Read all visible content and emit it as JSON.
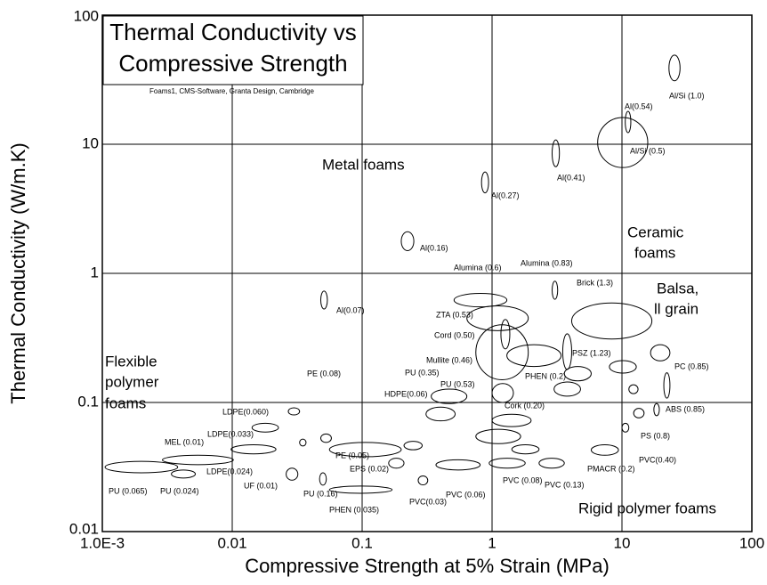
{
  "chart_data": {
    "type": "scatter",
    "log_x": true,
    "log_y": true,
    "grid": true,
    "title": [
      "Thermal Conductivity vs",
      "Compressive Strength"
    ],
    "subtitle": "Foams1, CMS-Software, Granta Design, Cambridge",
    "x_label": "Compressive Strength at 5% Strain (MPa)",
    "y_label": "Thermal Conductivity (W/m.K)",
    "xlim": [
      0.001,
      100
    ],
    "xticks": [
      {
        "value": 0.001,
        "label": "1.0E-3"
      },
      0.01,
      0.1,
      1,
      10,
      100
    ],
    "ylim": [
      0.01,
      100
    ],
    "yticks": [
      0.01,
      0.1,
      1,
      10,
      100
    ],
    "annotations": [
      {
        "lines": [
          "Metal foams"
        ]
      },
      {
        "lines": [
          "Ceramic",
          "foams"
        ]
      },
      {
        "lines": [
          "Balsa,",
          "ll grain"
        ]
      },
      {
        "lines": [
          "Flexible",
          "polymer",
          "foams"
        ]
      },
      {
        "lines": [
          "Rigid polymer foams"
        ]
      }
    ],
    "points": [
      {
        "name": "Al/Si (1.0)",
        "x": [
          23,
          28
        ],
        "y": [
          31,
          49
        ]
      },
      {
        "name": "Al(0.54)",
        "x": [
          10.6,
          11.7
        ],
        "y": [
          12.3,
          18
        ]
      },
      {
        "name": "Al/Si (0.5)",
        "x": [
          6.5,
          15.8
        ],
        "y": [
          6.6,
          16.1
        ]
      },
      {
        "name": "Al(0.41)",
        "x": [
          2.9,
          3.3
        ],
        "y": [
          6.7,
          10.8
        ]
      },
      {
        "name": "Al(0.27)",
        "x": [
          0.83,
          0.94
        ],
        "y": [
          4.2,
          6.1
        ]
      },
      {
        "name": "Al(0.16)",
        "x": [
          0.2,
          0.25
        ],
        "y": [
          1.5,
          2.1
        ]
      },
      {
        "name": "Al(0.07)",
        "x": [
          0.048,
          0.054
        ],
        "y": [
          0.53,
          0.73
        ]
      },
      {
        "name": "Alumina (0.6)",
        "x": [
          0.51,
          1.3
        ],
        "y": [
          0.55,
          0.7
        ]
      },
      {
        "name": "Alumina (0.83)",
        "x": [
          2.9,
          3.2
        ],
        "y": [
          0.63,
          0.87
        ]
      },
      {
        "name": "Brick (1.3)",
        "x": [
          4.1,
          17
        ],
        "y": [
          0.31,
          0.59
        ]
      },
      {
        "name": "ZTA (0.53)",
        "x": [
          0.64,
          1.9
        ],
        "y": [
          0.36,
          0.56
        ]
      },
      {
        "name": "Cord (0.50)",
        "x": [
          1.17,
          1.37
        ],
        "y": [
          0.26,
          0.44
        ]
      },
      {
        "name": "Mullite (0.46)",
        "x": [
          0.75,
          1.9
        ],
        "y": [
          0.15,
          0.4
        ]
      },
      {
        "name": "PSZ (1.23)",
        "x": [
          3.5,
          4.1
        ],
        "y": [
          0.18,
          0.34
        ]
      },
      {
        "name": "PC (0.85)",
        "x": [
          21,
          23.4
        ],
        "y": [
          0.108,
          0.17
        ]
      },
      {
        "name": null,
        "x": [
          16.6,
          23.4
        ],
        "y": [
          0.21,
          0.28
        ]
      },
      {
        "name": "ABS (0.85)",
        "x": [
          17.6,
          19.4
        ],
        "y": [
          0.079,
          0.098
        ]
      },
      {
        "name": "PS (0.8)",
        "x": [
          12.3,
          14.8
        ],
        "y": [
          0.076,
          0.09
        ]
      },
      {
        "name": "PVC(0.40)",
        "x": [
          10,
          11.3
        ],
        "y": [
          0.059,
          0.069
        ]
      },
      {
        "name": "PHEN (0.2)",
        "x": [
          3,
          4.8
        ],
        "y": [
          0.112,
          0.144
        ]
      },
      {
        "name": "Cork (0.20)",
        "x": [
          1,
          2
        ],
        "y": [
          0.065,
          0.081
        ]
      },
      {
        "name": "PU (0.53)",
        "x": [
          1,
          1.46
        ],
        "y": [
          0.1,
          0.14
        ]
      },
      {
        "name": "PU (0.35)",
        "x": [
          0.34,
          0.64
        ],
        "y": [
          0.098,
          0.127
        ]
      },
      {
        "name": "HDPE(0.06)",
        "x": [
          0.31,
          0.52
        ],
        "y": [
          0.072,
          0.092
        ]
      },
      {
        "name": "PMACR (0.2)",
        "x": [
          5.8,
          9.4
        ],
        "y": [
          0.039,
          0.047
        ]
      },
      {
        "name": "PVC (0.13)",
        "x": [
          2.3,
          3.6
        ],
        "y": [
          0.031,
          0.037
        ]
      },
      {
        "name": "PVC (0.08)",
        "x": [
          0.95,
          1.8
        ],
        "y": [
          0.031,
          0.037
        ]
      },
      {
        "name": "PVC (0.06)",
        "x": [
          0.37,
          0.81
        ],
        "y": [
          0.03,
          0.036
        ]
      },
      {
        "name": "PVC(0.03)",
        "x": [
          0.27,
          0.32
        ],
        "y": [
          0.023,
          0.027
        ]
      },
      {
        "name": "PHEN (0.035)",
        "x": [
          0.056,
          0.17
        ],
        "y": [
          0.0198,
          0.0225
        ]
      },
      {
        "name": "PU (0.16)",
        "x": [
          0.047,
          0.053
        ],
        "y": [
          0.0229,
          0.0285
        ]
      },
      {
        "name": "UF (0.01)",
        "x": [
          0.026,
          0.032
        ],
        "y": [
          0.025,
          0.031
        ]
      },
      {
        "name": "EPS (0.02)",
        "x": [
          0.056,
          0.2
        ],
        "y": [
          0.038,
          0.049
        ]
      },
      {
        "name": "PE (0.05)",
        "x": [
          0.048,
          0.058
        ],
        "y": [
          0.049,
          0.057
        ]
      },
      {
        "name": "PE (0.08)",
        "x": [
          0.033,
          0.037
        ],
        "y": [
          0.046,
          0.052
        ]
      },
      {
        "name": "LDPE(0.060)",
        "x": [
          0.027,
          0.033
        ],
        "y": [
          0.08,
          0.091
        ]
      },
      {
        "name": "LDPE(0.033)",
        "x": [
          0.0142,
          0.0227
        ],
        "y": [
          0.059,
          0.069
        ]
      },
      {
        "name": "LDPE(0.024)",
        "x": [
          0.0098,
          0.0217
        ],
        "y": [
          0.04,
          0.047
        ]
      },
      {
        "name": "MEL (0.01)",
        "x": [
          0.0029,
          0.0102
        ],
        "y": [
          0.033,
          0.039
        ]
      },
      {
        "name": "PU (0.024)",
        "x": [
          0.0034,
          0.0052
        ],
        "y": [
          0.026,
          0.03
        ]
      },
      {
        "name": "PU (0.065)",
        "x": [
          0.00105,
          0.0038
        ],
        "y": [
          0.0285,
          0.035
        ]
      },
      {
        "name": null,
        "x": [
          8,
          12.9
        ],
        "y": [
          0.169,
          0.211
        ]
      },
      {
        "name": null,
        "x": [
          11.3,
          13.3
        ],
        "y": [
          0.117,
          0.137
        ]
      },
      {
        "name": null,
        "x": [
          1.3,
          3.4
        ],
        "y": [
          0.19,
          0.28
        ]
      },
      {
        "name": null,
        "x": [
          3.6,
          5.8
        ],
        "y": [
          0.147,
          0.19
        ]
      },
      {
        "name": null,
        "x": [
          0.75,
          1.66
        ],
        "y": [
          0.048,
          0.062
        ]
      },
      {
        "name": null,
        "x": [
          0.16,
          0.21
        ],
        "y": [
          0.031,
          0.037
        ]
      },
      {
        "name": null,
        "x": [
          1.42,
          2.3
        ],
        "y": [
          0.04,
          0.047
        ]
      },
      {
        "name": null,
        "x": [
          0.21,
          0.29
        ],
        "y": [
          0.043,
          0.05
        ]
      }
    ]
  }
}
